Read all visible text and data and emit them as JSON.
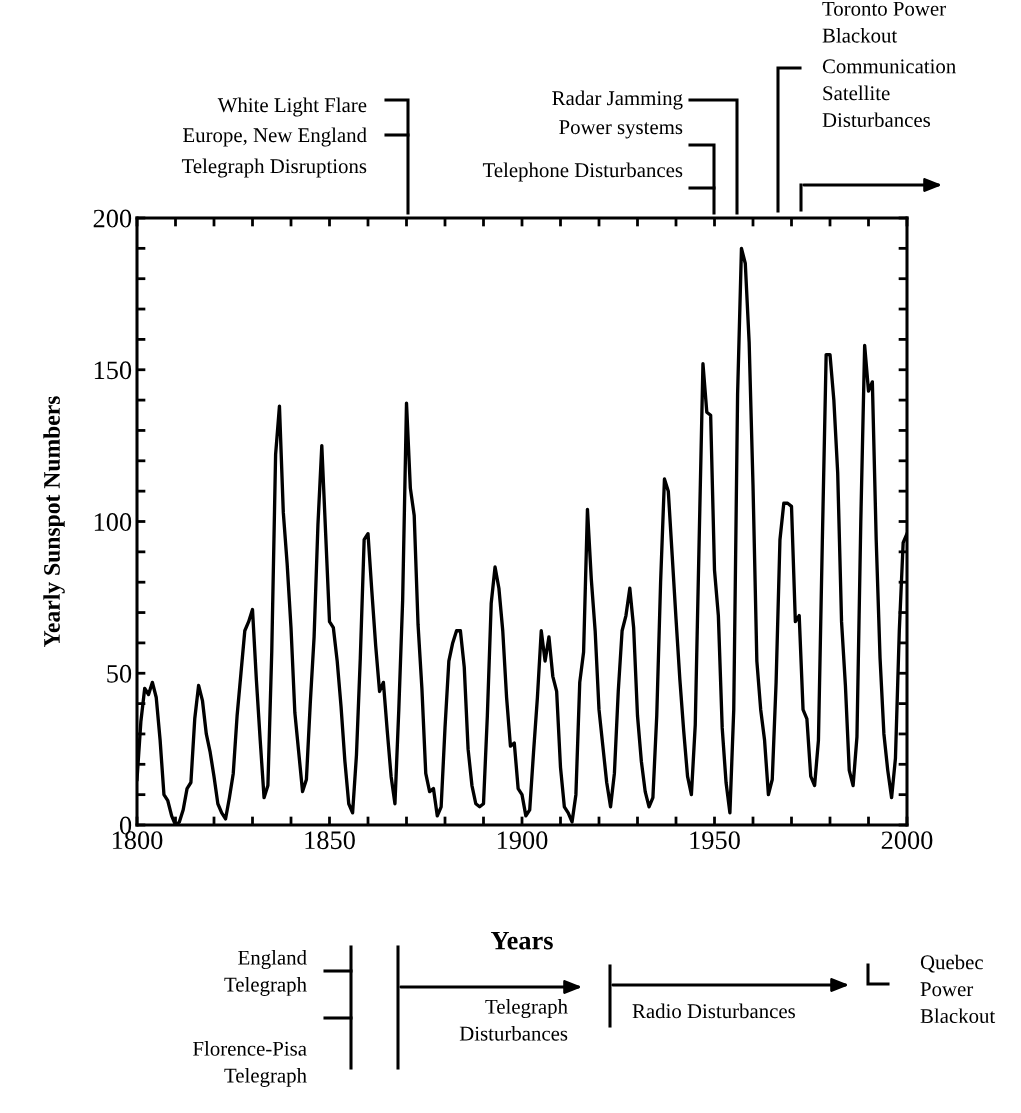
{
  "chart_data": {
    "type": "line",
    "xlabel": "Years",
    "ylabel": "Yearly Sunspot Numbers",
    "x": [
      1800,
      1801,
      1802,
      1803,
      1804,
      1805,
      1806,
      1807,
      1808,
      1809,
      1810,
      1811,
      1812,
      1813,
      1814,
      1815,
      1816,
      1817,
      1818,
      1819,
      1820,
      1821,
      1822,
      1823,
      1824,
      1825,
      1826,
      1827,
      1828,
      1829,
      1830,
      1831,
      1832,
      1833,
      1834,
      1835,
      1836,
      1837,
      1838,
      1839,
      1840,
      1841,
      1842,
      1843,
      1844,
      1845,
      1846,
      1847,
      1848,
      1849,
      1850,
      1851,
      1852,
      1853,
      1854,
      1855,
      1856,
      1857,
      1858,
      1859,
      1860,
      1861,
      1862,
      1863,
      1864,
      1865,
      1866,
      1867,
      1868,
      1869,
      1870,
      1871,
      1872,
      1873,
      1874,
      1875,
      1876,
      1877,
      1878,
      1879,
      1880,
      1881,
      1882,
      1883,
      1884,
      1885,
      1886,
      1887,
      1888,
      1889,
      1890,
      1891,
      1892,
      1893,
      1894,
      1895,
      1896,
      1897,
      1898,
      1899,
      1900,
      1901,
      1902,
      1903,
      1904,
      1905,
      1906,
      1907,
      1908,
      1909,
      1910,
      1911,
      1912,
      1913,
      1914,
      1915,
      1916,
      1917,
      1918,
      1919,
      1920,
      1921,
      1922,
      1923,
      1924,
      1925,
      1926,
      1927,
      1928,
      1929,
      1930,
      1931,
      1932,
      1933,
      1934,
      1935,
      1936,
      1937,
      1938,
      1939,
      1940,
      1941,
      1942,
      1943,
      1944,
      1945,
      1946,
      1947,
      1948,
      1949,
      1950,
      1951,
      1952,
      1953,
      1954,
      1955,
      1956,
      1957,
      1958,
      1959,
      1960,
      1961,
      1962,
      1963,
      1964,
      1965,
      1966,
      1967,
      1968,
      1969,
      1970,
      1971,
      1972,
      1973,
      1974,
      1975,
      1976,
      1977,
      1978,
      1979,
      1980,
      1981,
      1982,
      1983,
      1984,
      1985,
      1986,
      1987,
      1988,
      1989,
      1990,
      1991,
      1992,
      1993,
      1994,
      1995,
      1996,
      1997,
      1998,
      1999,
      2000
    ],
    "series": [
      {
        "color": "#000000",
        "values": [
          15,
          34,
          45,
          43,
          47,
          42,
          28,
          10,
          8,
          3,
          0,
          1,
          5,
          12,
          14,
          35,
          46,
          41,
          30,
          24,
          16,
          7,
          4,
          2,
          9,
          17,
          36,
          50,
          64,
          67,
          71,
          48,
          28,
          9,
          13,
          57,
          122,
          138,
          103,
          86,
          65,
          37,
          24,
          11,
          15,
          40,
          62,
          99,
          125,
          96,
          67,
          65,
          54,
          39,
          21,
          7,
          4,
          23,
          55,
          94,
          96,
          77,
          59,
          44,
          47,
          31,
          16,
          7,
          38,
          74,
          139,
          111,
          102,
          66,
          45,
          17,
          11,
          12,
          3,
          6,
          32,
          54,
          60,
          64,
          64,
          52,
          25,
          13,
          7,
          6,
          7,
          36,
          73,
          85,
          78,
          64,
          42,
          26,
          27,
          12,
          10,
          3,
          5,
          24,
          42,
          64,
          54,
          62,
          49,
          44,
          19,
          6,
          4,
          1,
          10,
          47,
          57,
          104,
          81,
          64,
          38,
          26,
          14,
          6,
          17,
          44,
          64,
          69,
          78,
          65,
          36,
          21,
          11,
          6,
          9,
          36,
          80,
          114,
          110,
          89,
          68,
          48,
          31,
          16,
          10,
          33,
          93,
          152,
          136,
          135,
          84,
          69,
          32,
          14,
          4,
          38,
          142,
          190,
          185,
          159,
          112,
          54,
          38,
          28,
          10,
          15,
          47,
          94,
          106,
          106,
          105,
          67,
          69,
          38,
          35,
          16,
          13,
          28,
          93,
          155,
          155,
          140,
          116,
          67,
          46,
          18,
          13,
          29,
          100,
          158,
          143,
          146,
          94,
          55,
          30,
          18,
          9,
          22,
          64,
          93,
          96
        ]
      }
    ],
    "xlim": [
      1800,
      2000
    ],
    "xticks": [
      1800,
      {
        "value": 1810,
        "label": null
      },
      {
        "value": 1820,
        "label": null
      },
      {
        "value": 1830,
        "label": null
      },
      {
        "value": 1840,
        "label": null
      },
      1850,
      {
        "value": 1860,
        "label": null
      },
      {
        "value": 1870,
        "label": null
      },
      {
        "value": 1880,
        "label": null
      },
      {
        "value": 1890,
        "label": null
      },
      1900,
      {
        "value": 1910,
        "label": null
      },
      {
        "value": 1920,
        "label": null
      },
      {
        "value": 1930,
        "label": null
      },
      {
        "value": 1940,
        "label": null
      },
      1950,
      {
        "value": 1960,
        "label": null
      },
      {
        "value": 1970,
        "label": null
      },
      {
        "value": 1980,
        "label": null
      },
      {
        "value": 1990,
        "label": null
      },
      2000
    ],
    "ylim": [
      0,
      200
    ],
    "yticks": [
      0,
      {
        "value": 10,
        "label": null
      },
      {
        "value": 20,
        "label": null
      },
      {
        "value": 30,
        "label": null
      },
      {
        "value": 40,
        "label": null
      },
      50,
      {
        "value": 60,
        "label": null
      },
      {
        "value": 70,
        "label": null
      },
      {
        "value": 80,
        "label": null
      },
      {
        "value": 90,
        "label": null
      },
      100,
      {
        "value": 110,
        "label": null
      },
      {
        "value": 120,
        "label": null
      },
      {
        "value": 130,
        "label": null
      },
      {
        "value": 140,
        "label": null
      },
      150,
      {
        "value": 160,
        "label": null
      },
      {
        "value": 170,
        "label": null
      },
      {
        "value": 180,
        "label": null
      },
      {
        "value": 190,
        "label": null
      },
      200
    ],
    "grid": false,
    "marker": "none",
    "line_style": "solid",
    "annotations": [
      "White Light Flare",
      "Europe, New England",
      "Telegraph Disruptions",
      "Radar Jamming",
      "Power systems",
      "Telephone Disturbances",
      "Toronto Power\nBlackout",
      "Communication\nSatellite\nDisturbances",
      "England\nTelegraph",
      "Florence-Pisa\nTelegraph",
      "Telegraph\nDisturbances",
      "Radio Disturbances",
      "Quebec\nPower\nBlackout"
    ]
  }
}
